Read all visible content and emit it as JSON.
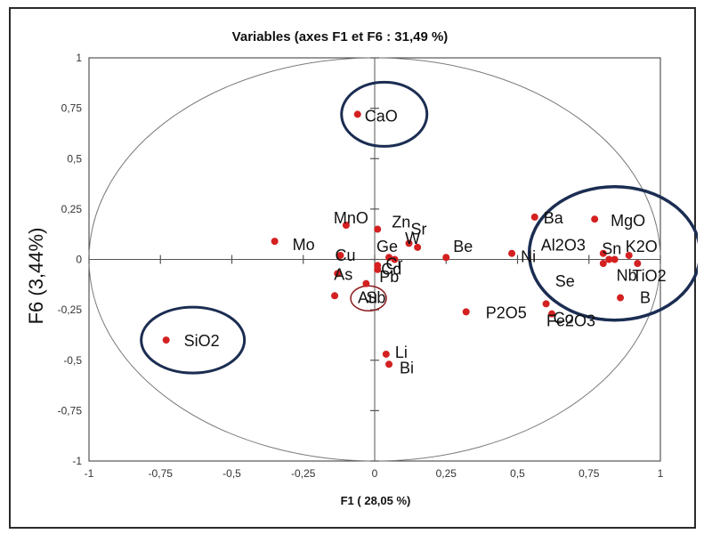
{
  "chart_data": {
    "type": "scatter",
    "title": "Variables (axes F1 et F6 : 31,49 %)",
    "xlabel": "F1 ( 28,05 %)",
    "ylabel": "F6 (3,44%)",
    "xlim": [
      -1,
      1
    ],
    "ylim": [
      -1,
      1
    ],
    "xticks": [
      -1,
      -0.75,
      -0.5,
      -0.25,
      0,
      0.25,
      0.5,
      0.75,
      1
    ],
    "yticks": [
      -1,
      -0.75,
      -0.5,
      -0.25,
      0,
      0.25,
      0.5,
      0.75,
      1
    ],
    "xtick_labels": [
      "-1",
      "-0,75",
      "-0,5",
      "-0,25",
      "0",
      "0,25",
      "0,5",
      "0,75",
      "1"
    ],
    "ytick_labels": [
      "-1",
      "-0,75",
      "-0,5",
      "-0,25",
      "0",
      "0,25",
      "0,5",
      "0,75",
      "1"
    ],
    "grid": false,
    "correlation_circle": true,
    "point_color": "#d42020",
    "highlight_color": "#1b2d52",
    "points": [
      {
        "name": "CaO",
        "x": -0.06,
        "y": 0.72
      },
      {
        "name": "MnO",
        "x": -0.1,
        "y": 0.17
      },
      {
        "name": "Zn",
        "x": 0.01,
        "y": 0.15
      },
      {
        "name": "Sr",
        "x": 0.12,
        "y": 0.08
      },
      {
        "name": "W",
        "x": 0.15,
        "y": 0.06
      },
      {
        "name": "Mo",
        "x": -0.35,
        "y": 0.09
      },
      {
        "name": "Ge",
        "x": 0.05,
        "y": 0.01
      },
      {
        "name": "Be",
        "x": 0.25,
        "y": 0.01
      },
      {
        "name": "Ni",
        "x": 0.48,
        "y": 0.03
      },
      {
        "name": "Cu",
        "x": -0.12,
        "y": 0.02
      },
      {
        "name": "Cd",
        "x": 0.01,
        "y": -0.03
      },
      {
        "name": "Cr",
        "x": 0.07,
        "y": 0.0
      },
      {
        "name": "Pb",
        "x": 0.01,
        "y": -0.05
      },
      {
        "name": "As",
        "x": -0.13,
        "y": -0.07
      },
      {
        "name": "Sb",
        "x": -0.03,
        "y": -0.12
      },
      {
        "name": "Au",
        "x": -0.14,
        "y": -0.18
      },
      {
        "name": "P2O5",
        "x": 0.32,
        "y": -0.26
      },
      {
        "name": "Li",
        "x": 0.04,
        "y": -0.47
      },
      {
        "name": "Bi",
        "x": 0.05,
        "y": -0.52
      },
      {
        "name": "SiO2",
        "x": -0.73,
        "y": -0.4
      },
      {
        "name": "Ba",
        "x": 0.56,
        "y": 0.21
      },
      {
        "name": "MgO",
        "x": 0.77,
        "y": 0.2
      },
      {
        "name": "Al2O3",
        "x": 0.8,
        "y": 0.03
      },
      {
        "name": "Sn",
        "x": 0.82,
        "y": 0.0
      },
      {
        "name": "K2O",
        "x": 0.89,
        "y": 0.02
      },
      {
        "name": "TiO2",
        "x": 0.92,
        "y": -0.02
      },
      {
        "name": "Nb",
        "x": 0.84,
        "y": 0.0
      },
      {
        "name": "Se",
        "x": 0.8,
        "y": -0.02
      },
      {
        "name": "B",
        "x": 0.86,
        "y": -0.19
      },
      {
        "name": "Co",
        "x": 0.6,
        "y": -0.22
      },
      {
        "name": "Fe2O3",
        "x": 0.62,
        "y": -0.27
      }
    ],
    "highlight_circles": [
      "CaO",
      "SiO2",
      "Au",
      "right-cluster"
    ]
  }
}
